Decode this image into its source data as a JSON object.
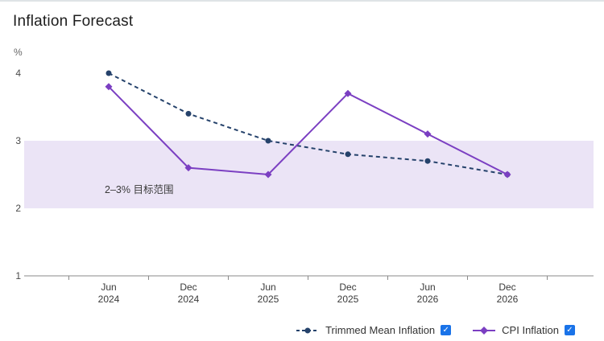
{
  "title": "Inflation Forecast",
  "icons": {
    "check": "✓"
  },
  "colors": {
    "checkbox_blue": "#1a73e8",
    "axis": "#8a8a8a",
    "band_fill": "#ebe4f6",
    "trimmed_mean": "#25426b",
    "cpi": "#7b3fc2"
  },
  "chart_data": {
    "type": "line",
    "title": "Inflation Forecast",
    "xlabel": "",
    "ylabel": "%",
    "ylim": [
      1,
      4.2
    ],
    "yticks": [
      1,
      2,
      3,
      4
    ],
    "grid": false,
    "legend_position": "bottom-right",
    "categories": [
      "Jun 2024",
      "Dec 2024",
      "Jun 2025",
      "Dec 2025",
      "Jun 2026",
      "Dec 2026"
    ],
    "series": [
      {
        "name": "Trimmed Mean Inflation",
        "values": [
          4.0,
          3.4,
          3.0,
          2.8,
          2.7,
          2.5
        ],
        "color": "#25426b",
        "line_style": "dashed",
        "marker": "circle",
        "checked": true
      },
      {
        "name": "CPI Inflation",
        "values": [
          3.8,
          2.6,
          2.5,
          3.7,
          3.1,
          2.5
        ],
        "color": "#7b3fc2",
        "line_style": "solid",
        "marker": "diamond",
        "checked": true
      }
    ],
    "target_band": {
      "from": 2,
      "to": 3,
      "label": "2–3% 目标范围",
      "color": "#ebe4f6"
    }
  }
}
